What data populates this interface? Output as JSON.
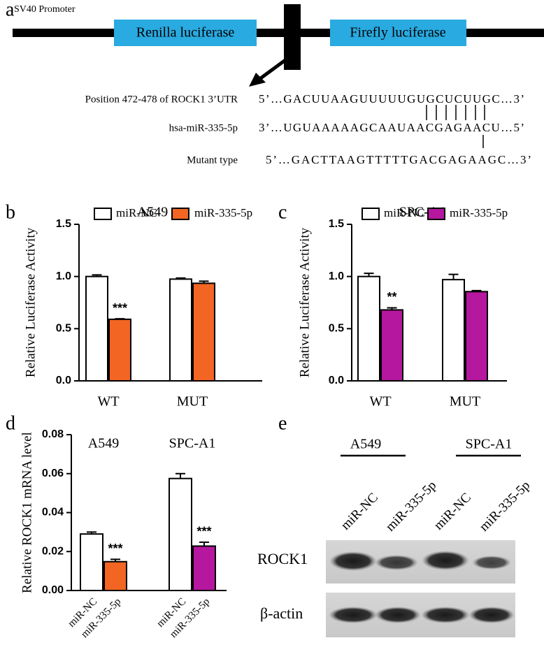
{
  "panels": [
    "a",
    "b",
    "c",
    "d",
    "e"
  ],
  "diagram": {
    "promoter": "SV40 Promoter",
    "genes": [
      "Renilla luciferase",
      "Firefly luciferase"
    ],
    "rows": [
      {
        "label": "Position 472-478 of ROCK1 3’UTR",
        "sequence": "5’…GACUUAAGUUUUUGUGCUCUUGC…3’"
      },
      {
        "label": "hsa-miR-335-5p",
        "sequence": "3’…UGUAAAAAGCAAUAACGAGAACU…5’"
      },
      {
        "label": "Mutant type",
        "sequence": "5’…GACTTAAGTTTTTGACGAGAAGC…3’"
      }
    ]
  },
  "chart_data": [
    {
      "type": "bar",
      "title": "A549",
      "y_label": "Relative Luciferase Activity",
      "categories": [
        "WT",
        "MUT"
      ],
      "series": [
        {
          "name": "miR-NC",
          "color": "#ffffff",
          "values": [
            1.0,
            0.975
          ],
          "errors": [
            0.015,
            0.01
          ],
          "annotations": [
            null,
            null
          ]
        },
        {
          "name": "miR-335-5p",
          "color": "#f26522",
          "values": [
            0.59,
            0.935
          ],
          "errors": [
            0.005,
            0.02
          ],
          "annotations": [
            "***",
            null
          ]
        }
      ],
      "ylim": [
        0,
        1.5
      ],
      "yticks": [
        {
          "value": 0,
          "label": "0.0"
        },
        {
          "value": 0.5,
          "label": "0.5"
        },
        {
          "value": 1,
          "label": "1.0"
        },
        {
          "value": 1.5,
          "label": "1.5"
        }
      ],
      "legend": "top"
    },
    {
      "type": "bar",
      "title": "SPC-A1",
      "y_label": "Relative Luciferase Activity",
      "categories": [
        "WT",
        "MUT"
      ],
      "series": [
        {
          "name": "miR-NC",
          "color": "#ffffff",
          "values": [
            1.0,
            0.97
          ],
          "errors": [
            0.03,
            0.05
          ],
          "annotations": [
            null,
            null
          ]
        },
        {
          "name": "miR-335-5p",
          "color": "#b5179e",
          "values": [
            0.68,
            0.855
          ],
          "errors": [
            0.02,
            0.01
          ],
          "annotations": [
            "**",
            null
          ]
        }
      ],
      "ylim": [
        0,
        1.5
      ],
      "yticks": [
        {
          "value": 0,
          "label": "0.0"
        },
        {
          "value": 0.5,
          "label": "0.5"
        },
        {
          "value": 1,
          "label": "1.0"
        },
        {
          "value": 1.5,
          "label": "1.5"
        }
      ],
      "legend": "top"
    },
    {
      "type": "bar",
      "y_label": "Relative ROCK1 mRNA level",
      "categories": [
        "A549",
        "SPC-A1"
      ],
      "series": [
        {
          "name": "miR-NC",
          "color": "#ffffff",
          "values": [
            0.029,
            0.0575
          ],
          "errors": [
            0.001,
            0.0025
          ],
          "annotations": [
            null,
            null
          ]
        },
        {
          "name": "miR-335-5p",
          "colors": [
            "#f26522",
            "#b5179e"
          ],
          "values": [
            0.0148,
            0.0228
          ],
          "errors": [
            0.0012,
            0.002
          ],
          "annotations": [
            "***",
            "***"
          ]
        }
      ],
      "ylim": [
        0,
        0.08
      ],
      "yticks": [
        {
          "value": 0,
          "label": "0.00"
        },
        0.02,
        0.04,
        0.06,
        0.08
      ],
      "legend": "none"
    }
  ],
  "blot": {
    "groups": [
      "A549",
      "SPC-A1"
    ],
    "lanes": [
      "miR-NC",
      "miR-335-5p",
      "miR-NC",
      "miR-335-5p"
    ],
    "rows": [
      "ROCK1",
      "β-actin"
    ]
  }
}
